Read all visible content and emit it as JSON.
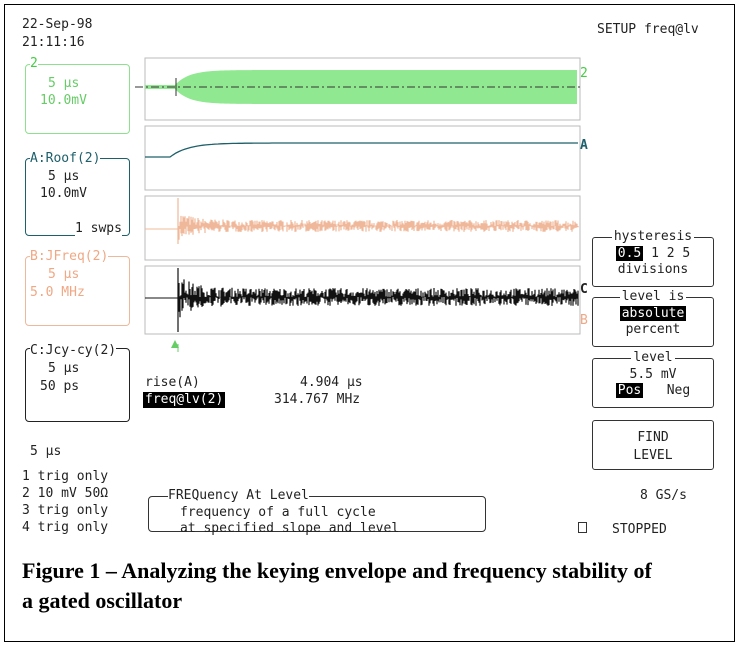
{
  "header": {
    "date": "22-Sep-98",
    "time": "21:11:16",
    "setup": "SETUP freq@lv"
  },
  "channels": [
    {
      "label": "2",
      "timebase": "5 μs",
      "scale": "10.0mV"
    },
    {
      "label": "A:Roof(2)",
      "timebase": "5 μs",
      "scale": "10.0mV",
      "sweeps": "1 swps"
    },
    {
      "label": "B:JFreq(2)",
      "timebase": "5 μs",
      "scale": "5.0 MHz"
    },
    {
      "label": "C:Jcy-cy(2)",
      "timebase": "5 μs",
      "scale": "50 ps"
    }
  ],
  "trace_markers": [
    "2",
    "A",
    "C",
    "B"
  ],
  "measurements": [
    {
      "name": "rise(A)",
      "value": "4.904 μs"
    },
    {
      "name": "freq@lv(2)",
      "value": "314.767 MHz"
    }
  ],
  "timebase": "5 μs",
  "inputs": [
    "1 trig only",
    "2 10 mV 50Ω",
    "3 trig only",
    "4 trig only"
  ],
  "help": {
    "title": "FREQuency At Level",
    "lines": [
      "frequency of a full cycle",
      "at specified slope and level"
    ]
  },
  "sample_rate": "8 GS/s",
  "status": "STOPPED",
  "menu": {
    "hysteresis": {
      "title": "hysteresis",
      "options": [
        "0.5",
        "1",
        "2",
        "5"
      ],
      "unit": "divisions"
    },
    "level_is": {
      "title": "level is",
      "options": [
        "absolute",
        "percent"
      ]
    },
    "level": {
      "title": "level",
      "value": "5.5 mV",
      "options": [
        "Pos",
        "Neg"
      ]
    },
    "find_level": "FIND LEVEL"
  },
  "caption": "Figure 1 – Analyzing the keying envelope and frequency stability of a gated oscillator"
}
